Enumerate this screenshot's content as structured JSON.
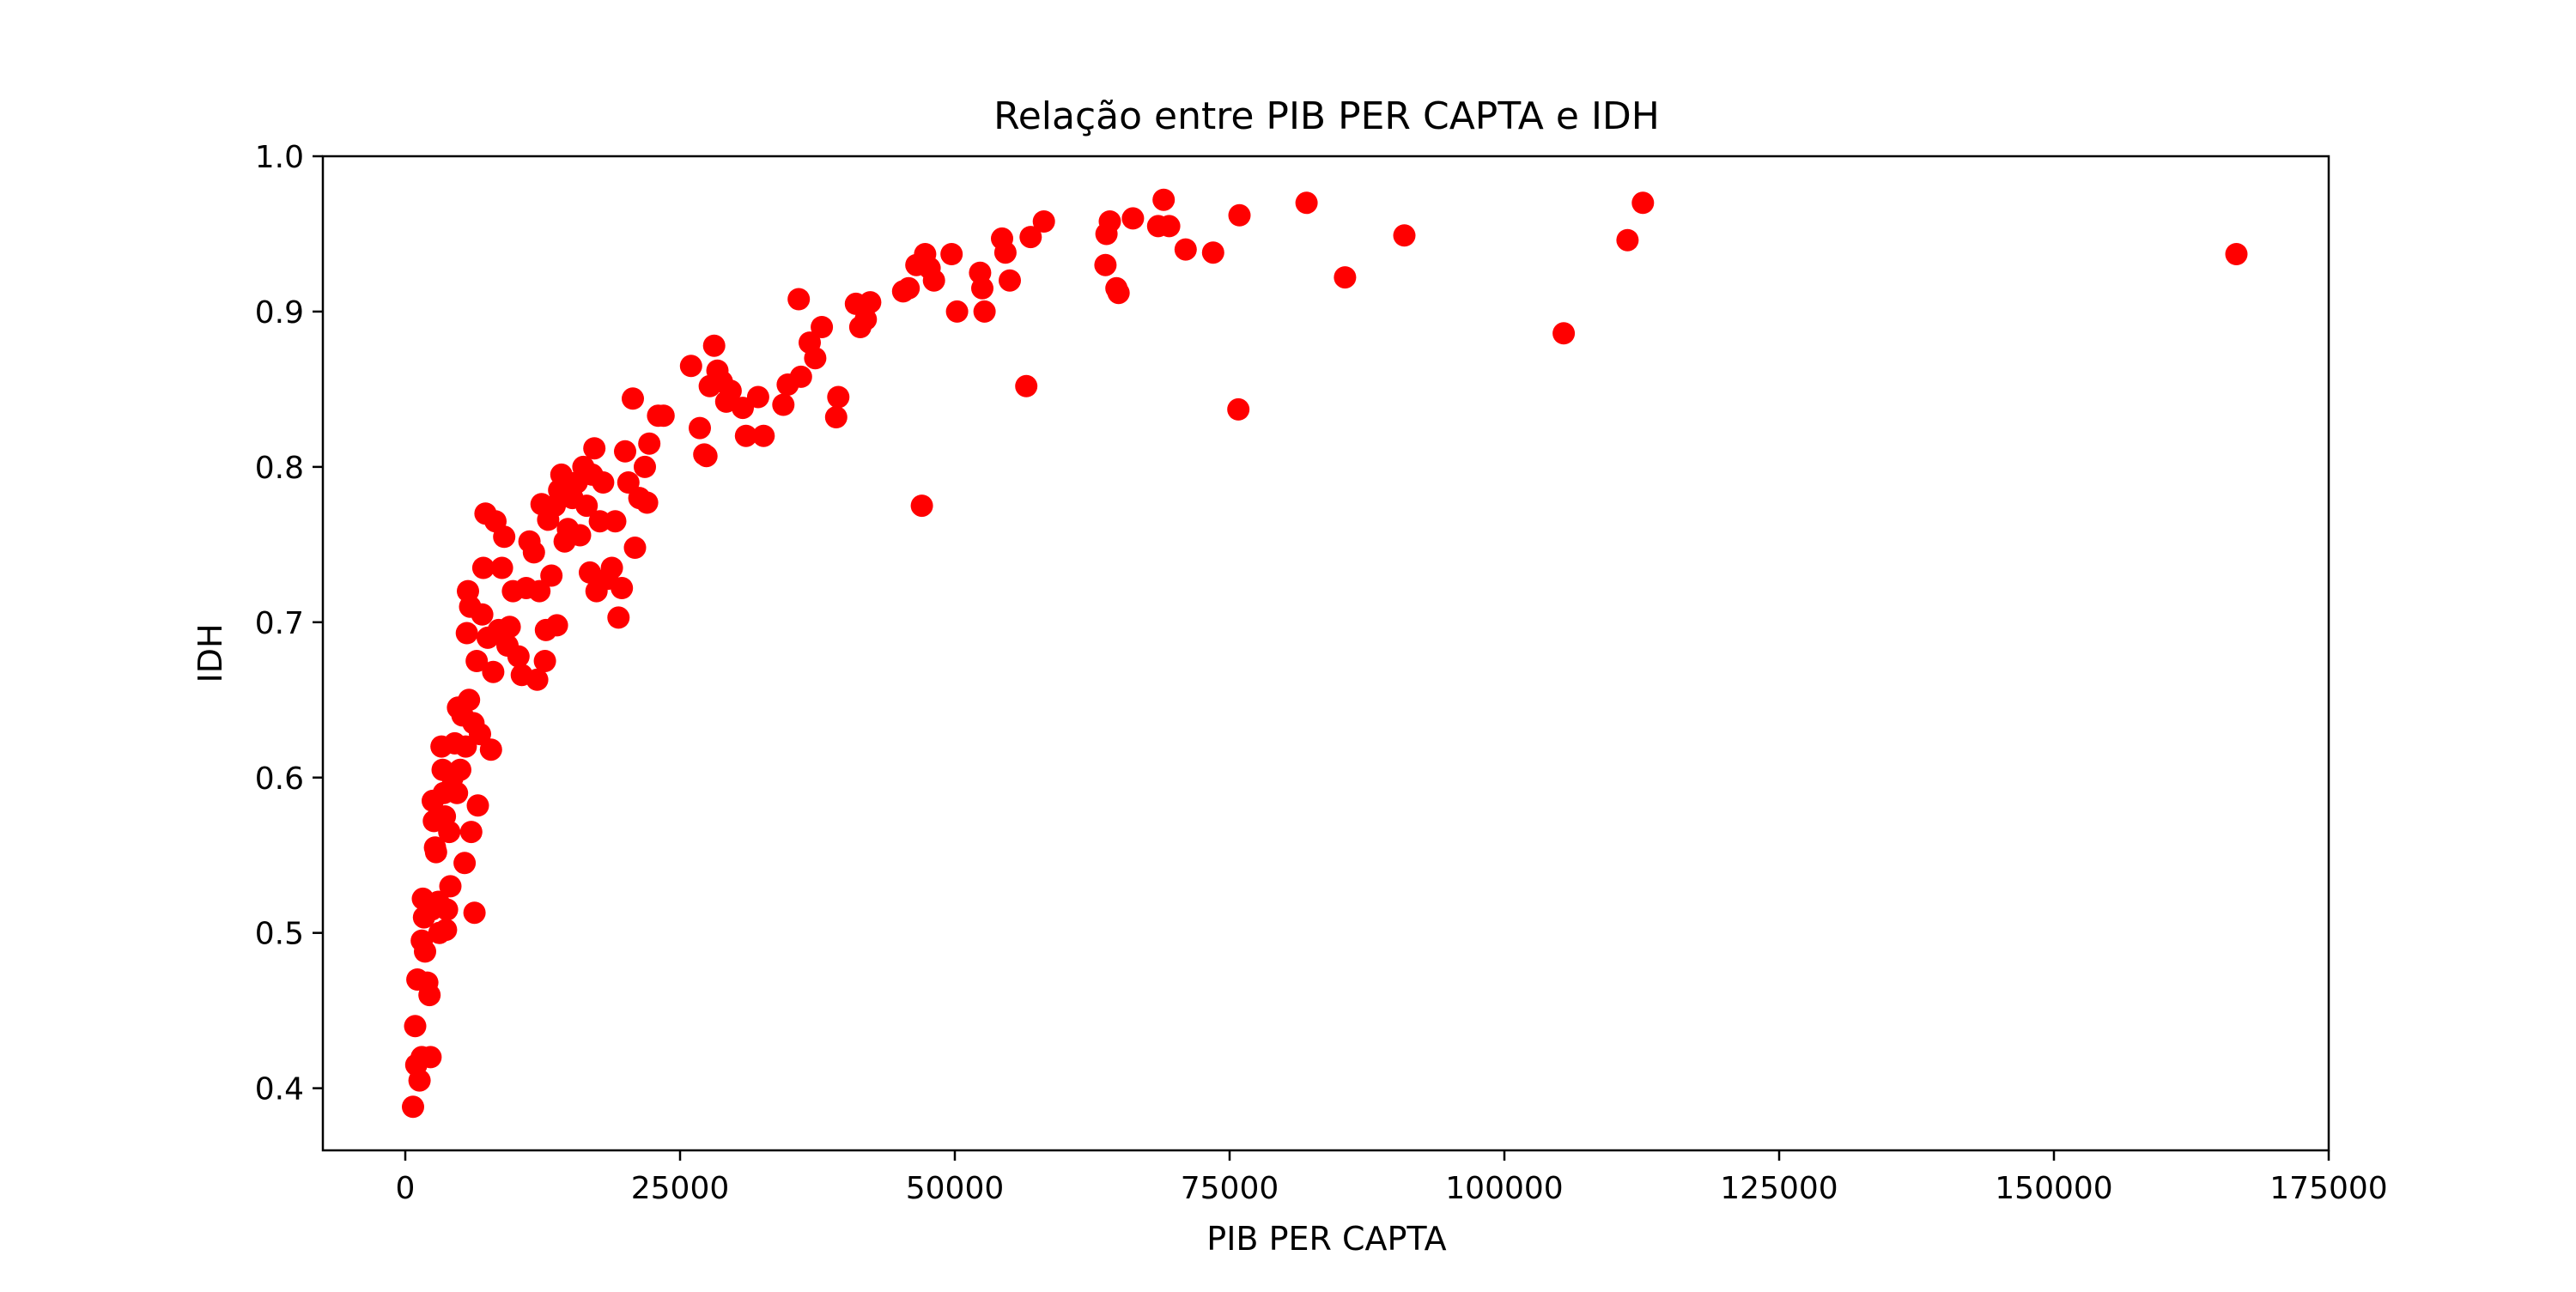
{
  "chart_data": {
    "type": "scatter",
    "title": "Relação entre PIB PER CAPTA e IDH",
    "xlabel": "PIB PER CAPTA",
    "ylabel": "IDH",
    "xlim": [
      -7500,
      175000
    ],
    "ylim": [
      0.36,
      1.0
    ],
    "x_ticks": [
      0,
      25000,
      50000,
      75000,
      100000,
      125000,
      150000,
      175000
    ],
    "x_tick_labels": [
      "0",
      "25000",
      "50000",
      "75000",
      "100000",
      "125000",
      "150000",
      "175000"
    ],
    "y_ticks": [
      0.4,
      0.5,
      0.6,
      0.7,
      0.8,
      0.9,
      1.0
    ],
    "y_tick_labels": [
      "0.4",
      "0.5",
      "0.6",
      "0.7",
      "0.8",
      "0.9",
      "1.0"
    ],
    "grid": false,
    "legend": "none",
    "marker_color": "#ff0000",
    "points": [
      [
        700,
        0.388
      ],
      [
        900,
        0.44
      ],
      [
        1000,
        0.415
      ],
      [
        1100,
        0.47
      ],
      [
        1300,
        0.405
      ],
      [
        1500,
        0.42
      ],
      [
        1500,
        0.495
      ],
      [
        1600,
        0.522
      ],
      [
        1700,
        0.51
      ],
      [
        1800,
        0.488
      ],
      [
        2000,
        0.468
      ],
      [
        2200,
        0.46
      ],
      [
        2300,
        0.42
      ],
      [
        2400,
        0.515
      ],
      [
        2500,
        0.585
      ],
      [
        2600,
        0.572
      ],
      [
        2700,
        0.555
      ],
      [
        2800,
        0.552
      ],
      [
        3000,
        0.52
      ],
      [
        3100,
        0.5
      ],
      [
        3300,
        0.62
      ],
      [
        3400,
        0.605
      ],
      [
        3500,
        0.59
      ],
      [
        3600,
        0.575
      ],
      [
        3700,
        0.502
      ],
      [
        3800,
        0.515
      ],
      [
        4000,
        0.565
      ],
      [
        4100,
        0.53
      ],
      [
        4300,
        0.6
      ],
      [
        4500,
        0.622
      ],
      [
        4700,
        0.59
      ],
      [
        4800,
        0.645
      ],
      [
        5000,
        0.605
      ],
      [
        5200,
        0.64
      ],
      [
        5400,
        0.545
      ],
      [
        5500,
        0.62
      ],
      [
        5600,
        0.693
      ],
      [
        5700,
        0.72
      ],
      [
        5800,
        0.65
      ],
      [
        5900,
        0.71
      ],
      [
        6000,
        0.565
      ],
      [
        6200,
        0.635
      ],
      [
        6300,
        0.513
      ],
      [
        6500,
        0.675
      ],
      [
        6600,
        0.582
      ],
      [
        6800,
        0.628
      ],
      [
        7000,
        0.705
      ],
      [
        7100,
        0.735
      ],
      [
        7300,
        0.77
      ],
      [
        7500,
        0.69
      ],
      [
        7800,
        0.618
      ],
      [
        8000,
        0.668
      ],
      [
        8200,
        0.765
      ],
      [
        8500,
        0.695
      ],
      [
        8800,
        0.735
      ],
      [
        9000,
        0.755
      ],
      [
        9300,
        0.685
      ],
      [
        9500,
        0.697
      ],
      [
        9800,
        0.72
      ],
      [
        10300,
        0.678
      ],
      [
        10600,
        0.666
      ],
      [
        11000,
        0.722
      ],
      [
        11300,
        0.752
      ],
      [
        11700,
        0.745
      ],
      [
        12000,
        0.663
      ],
      [
        12200,
        0.72
      ],
      [
        12400,
        0.776
      ],
      [
        12700,
        0.675
      ],
      [
        12800,
        0.695
      ],
      [
        13000,
        0.766
      ],
      [
        13300,
        0.73
      ],
      [
        13600,
        0.775
      ],
      [
        13800,
        0.698
      ],
      [
        14000,
        0.785
      ],
      [
        14200,
        0.795
      ],
      [
        14500,
        0.752
      ],
      [
        14800,
        0.76
      ],
      [
        15200,
        0.78
      ],
      [
        15600,
        0.79
      ],
      [
        15900,
        0.756
      ],
      [
        16200,
        0.8
      ],
      [
        16500,
        0.775
      ],
      [
        16800,
        0.732
      ],
      [
        17000,
        0.795
      ],
      [
        17200,
        0.812
      ],
      [
        17400,
        0.72
      ],
      [
        17700,
        0.765
      ],
      [
        18000,
        0.79
      ],
      [
        18400,
        0.728
      ],
      [
        18800,
        0.735
      ],
      [
        19100,
        0.765
      ],
      [
        19400,
        0.703
      ],
      [
        19700,
        0.722
      ],
      [
        20000,
        0.81
      ],
      [
        20300,
        0.79
      ],
      [
        20700,
        0.844
      ],
      [
        20900,
        0.748
      ],
      [
        21300,
        0.78
      ],
      [
        21800,
        0.8
      ],
      [
        22000,
        0.777
      ],
      [
        22200,
        0.815
      ],
      [
        23000,
        0.833
      ],
      [
        23500,
        0.833
      ],
      [
        26000,
        0.865
      ],
      [
        26800,
        0.825
      ],
      [
        27200,
        0.808
      ],
      [
        27400,
        0.807
      ],
      [
        27700,
        0.852
      ],
      [
        28100,
        0.878
      ],
      [
        28400,
        0.862
      ],
      [
        28800,
        0.855
      ],
      [
        29200,
        0.842
      ],
      [
        29600,
        0.849
      ],
      [
        30700,
        0.838
      ],
      [
        31000,
        0.82
      ],
      [
        32100,
        0.845
      ],
      [
        32600,
        0.82
      ],
      [
        34400,
        0.84
      ],
      [
        34800,
        0.853
      ],
      [
        35800,
        0.908
      ],
      [
        36000,
        0.858
      ],
      [
        36800,
        0.88
      ],
      [
        37300,
        0.87
      ],
      [
        37900,
        0.89
      ],
      [
        39200,
        0.832
      ],
      [
        39400,
        0.845
      ],
      [
        41000,
        0.905
      ],
      [
        41400,
        0.89
      ],
      [
        41900,
        0.895
      ],
      [
        42300,
        0.906
      ],
      [
        45300,
        0.913
      ],
      [
        45800,
        0.915
      ],
      [
        46500,
        0.93
      ],
      [
        47000,
        0.775
      ],
      [
        47300,
        0.937
      ],
      [
        47700,
        0.928
      ],
      [
        48100,
        0.92
      ],
      [
        49700,
        0.937
      ],
      [
        50200,
        0.9
      ],
      [
        52300,
        0.925
      ],
      [
        52500,
        0.915
      ],
      [
        52700,
        0.9
      ],
      [
        54300,
        0.947
      ],
      [
        54600,
        0.938
      ],
      [
        55000,
        0.92
      ],
      [
        56500,
        0.852
      ],
      [
        56900,
        0.948
      ],
      [
        58100,
        0.958
      ],
      [
        63700,
        0.93
      ],
      [
        63800,
        0.95
      ],
      [
        64100,
        0.958
      ],
      [
        64700,
        0.915
      ],
      [
        64900,
        0.912
      ],
      [
        66200,
        0.96
      ],
      [
        68500,
        0.955
      ],
      [
        69000,
        0.972
      ],
      [
        69500,
        0.955
      ],
      [
        71000,
        0.94
      ],
      [
        73500,
        0.938
      ],
      [
        75800,
        0.837
      ],
      [
        75900,
        0.962
      ],
      [
        82000,
        0.97
      ],
      [
        85500,
        0.922
      ],
      [
        90900,
        0.949
      ],
      [
        105400,
        0.886
      ],
      [
        111200,
        0.946
      ],
      [
        112600,
        0.97
      ],
      [
        166600,
        0.937
      ]
    ]
  }
}
